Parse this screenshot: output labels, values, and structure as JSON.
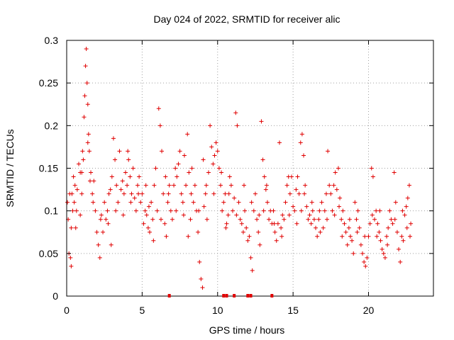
{
  "chart_data": {
    "type": "scatter",
    "title": "Day 024 of 2022, SRMTID for receiver alic",
    "xlabel": "GPS time / hours",
    "ylabel": "SRMTID / TECUs",
    "xlim": [
      0,
      24.3
    ],
    "ylim": [
      0,
      0.3
    ],
    "xticks": [
      0,
      5,
      10,
      15,
      20
    ],
    "yticks": [
      0,
      0.05,
      0.1,
      0.15,
      0.2,
      0.25,
      0.3
    ],
    "grid": true,
    "marker": "plus",
    "color": "#e00000",
    "zero_marks_x": [
      6.8,
      10.4,
      10.6,
      11.1,
      12.0,
      12.2,
      13.6
    ],
    "series": [
      {
        "values": [
          [
            0.05,
            0.11
          ],
          [
            0.1,
            0.09
          ],
          [
            0.15,
            0.05
          ],
          [
            0.2,
            0.12
          ],
          [
            0.25,
            0.045
          ],
          [
            0.3,
            0.035
          ],
          [
            0.35,
            0.12
          ],
          [
            0.4,
            0.1
          ],
          [
            0.45,
            0.14
          ],
          [
            0.5,
            0.11
          ],
          [
            0.55,
            0.13
          ],
          [
            0.6,
            0.08
          ],
          [
            0.7,
            0.125
          ],
          [
            0.8,
            0.155
          ],
          [
            0.9,
            0.145
          ],
          [
            1.0,
            0.12
          ],
          [
            1.05,
            0.17
          ],
          [
            1.1,
            0.16
          ],
          [
            1.15,
            0.21
          ],
          [
            1.2,
            0.235
          ],
          [
            1.25,
            0.27
          ],
          [
            1.3,
            0.29
          ],
          [
            1.35,
            0.25
          ],
          [
            1.4,
            0.225
          ],
          [
            1.45,
            0.19
          ],
          [
            1.5,
            0.17
          ],
          [
            1.55,
            0.135
          ],
          [
            1.6,
            0.145
          ],
          [
            1.7,
            0.12
          ],
          [
            1.8,
            0.135
          ],
          [
            1.9,
            0.1
          ],
          [
            2.0,
            0.075
          ],
          [
            2.1,
            0.06
          ],
          [
            2.2,
            0.045
          ],
          [
            2.3,
            0.095
          ],
          [
            2.4,
            0.075
          ],
          [
            2.5,
            0.11
          ],
          [
            2.6,
            0.09
          ],
          [
            2.7,
            0.1
          ],
          [
            2.8,
            0.12
          ],
          [
            2.9,
            0.125
          ],
          [
            3.0,
            0.14
          ],
          [
            3.1,
            0.185
          ],
          [
            3.2,
            0.16
          ],
          [
            3.3,
            0.13
          ],
          [
            3.4,
            0.11
          ],
          [
            3.5,
            0.17
          ],
          [
            3.6,
            0.125
          ],
          [
            3.7,
            0.135
          ],
          [
            3.8,
            0.12
          ],
          [
            3.9,
            0.145
          ],
          [
            4.0,
            0.13
          ],
          [
            4.1,
            0.16
          ],
          [
            4.2,
            0.14
          ],
          [
            4.3,
            0.12
          ],
          [
            4.4,
            0.15
          ],
          [
            4.5,
            0.115
          ],
          [
            4.6,
            0.1
          ],
          [
            4.7,
            0.13
          ],
          [
            4.8,
            0.14
          ],
          [
            4.9,
            0.11
          ],
          [
            5.0,
            0.12
          ],
          [
            5.1,
            0.085
          ],
          [
            5.2,
            0.1
          ],
          [
            5.3,
            0.095
          ],
          [
            5.4,
            0.08
          ],
          [
            5.5,
            0.075
          ],
          [
            5.6,
            0.11
          ],
          [
            5.7,
            0.09
          ],
          [
            5.8,
            0.13
          ],
          [
            5.9,
            0.15
          ],
          [
            6.0,
            0.1
          ],
          [
            6.1,
            0.22
          ],
          [
            6.2,
            0.2
          ],
          [
            6.3,
            0.17
          ],
          [
            6.4,
            0.12
          ],
          [
            6.5,
            0.085
          ],
          [
            6.6,
            0.07
          ],
          [
            6.7,
            0.11
          ],
          [
            6.8,
            0.13
          ],
          [
            6.9,
            0.1
          ],
          [
            7.0,
            0.09
          ],
          [
            7.1,
            0.13
          ],
          [
            7.2,
            0.15
          ],
          [
            7.3,
            0.14
          ],
          [
            7.4,
            0.155
          ],
          [
            7.5,
            0.17
          ],
          [
            7.6,
            0.12
          ],
          [
            7.7,
            0.11
          ],
          [
            7.8,
            0.165
          ],
          [
            7.9,
            0.13
          ],
          [
            8.0,
            0.19
          ],
          [
            8.1,
            0.145
          ],
          [
            8.2,
            0.09
          ],
          [
            8.3,
            0.15
          ],
          [
            8.4,
            0.11
          ],
          [
            8.5,
            0.13
          ],
          [
            8.6,
            0.1
          ],
          [
            8.7,
            0.075
          ],
          [
            8.8,
            0.04
          ],
          [
            8.9,
            0.02
          ],
          [
            9.0,
            0.01
          ],
          [
            9.1,
            0.105
          ],
          [
            9.2,
            0.12
          ],
          [
            9.3,
            0.09
          ],
          [
            9.4,
            0.145
          ],
          [
            9.5,
            0.2
          ],
          [
            9.6,
            0.175
          ],
          [
            9.7,
            0.155
          ],
          [
            9.8,
            0.165
          ],
          [
            9.9,
            0.18
          ],
          [
            10.0,
            0.17
          ],
          [
            10.1,
            0.15
          ],
          [
            10.2,
            0.13
          ],
          [
            10.3,
            0.1
          ],
          [
            10.4,
            0.11
          ],
          [
            10.5,
            0.12
          ],
          [
            10.6,
            0.085
          ],
          [
            10.7,
            0.095
          ],
          [
            10.8,
            0.14
          ],
          [
            10.9,
            0.13
          ],
          [
            11.0,
            0.1
          ],
          [
            11.1,
            0.115
          ],
          [
            11.2,
            0.215
          ],
          [
            11.3,
            0.2
          ],
          [
            11.4,
            0.11
          ],
          [
            11.5,
            0.09
          ],
          [
            11.6,
            0.085
          ],
          [
            11.7,
            0.075
          ],
          [
            11.8,
            0.1
          ],
          [
            11.9,
            0.08
          ],
          [
            12.0,
            0.065
          ],
          [
            12.1,
            0.07
          ],
          [
            12.2,
            0.045
          ],
          [
            12.3,
            0.03
          ],
          [
            12.4,
            0.1
          ],
          [
            12.5,
            0.12
          ],
          [
            12.6,
            0.09
          ],
          [
            12.7,
            0.075
          ],
          [
            12.8,
            0.06
          ],
          [
            12.9,
            0.205
          ],
          [
            13.0,
            0.16
          ],
          [
            13.1,
            0.14
          ],
          [
            13.2,
            0.125
          ],
          [
            13.3,
            0.11
          ],
          [
            13.4,
            0.09
          ],
          [
            13.5,
            0.1
          ],
          [
            13.6,
            0.085
          ],
          [
            13.7,
            0.1
          ],
          [
            13.8,
            0.075
          ],
          [
            13.9,
            0.065
          ],
          [
            14.0,
            0.085
          ],
          [
            14.1,
            0.18
          ],
          [
            14.2,
            0.08
          ],
          [
            14.3,
            0.095
          ],
          [
            14.4,
            0.09
          ],
          [
            14.5,
            0.11
          ],
          [
            14.6,
            0.13
          ],
          [
            14.7,
            0.14
          ],
          [
            14.8,
            0.12
          ],
          [
            14.9,
            0.14
          ],
          [
            15.0,
            0.105
          ],
          [
            15.1,
            0.1
          ],
          [
            15.2,
            0.125
          ],
          [
            15.3,
            0.14
          ],
          [
            15.4,
            0.12
          ],
          [
            15.5,
            0.18
          ],
          [
            15.6,
            0.19
          ],
          [
            15.7,
            0.165
          ],
          [
            15.8,
            0.13
          ],
          [
            15.9,
            0.105
          ],
          [
            16.0,
            0.09
          ],
          [
            16.1,
            0.095
          ],
          [
            16.2,
            0.085
          ],
          [
            16.3,
            0.1
          ],
          [
            16.4,
            0.09
          ],
          [
            16.5,
            0.08
          ],
          [
            16.6,
            0.07
          ],
          [
            16.7,
            0.09
          ],
          [
            16.8,
            0.075
          ],
          [
            16.9,
            0.11
          ],
          [
            17.0,
            0.08
          ],
          [
            17.1,
            0.1
          ],
          [
            17.2,
            0.12
          ],
          [
            17.3,
            0.17
          ],
          [
            17.4,
            0.13
          ],
          [
            17.5,
            0.12
          ],
          [
            17.6,
            0.1
          ],
          [
            17.7,
            0.13
          ],
          [
            17.8,
            0.145
          ],
          [
            17.9,
            0.125
          ],
          [
            18.0,
            0.15
          ],
          [
            18.1,
            0.115
          ],
          [
            18.2,
            0.09
          ],
          [
            18.3,
            0.1
          ],
          [
            18.4,
            0.085
          ],
          [
            18.5,
            0.075
          ],
          [
            18.6,
            0.06
          ],
          [
            18.7,
            0.08
          ],
          [
            18.8,
            0.07
          ],
          [
            18.9,
            0.065
          ],
          [
            19.0,
            0.05
          ],
          [
            19.1,
            0.11
          ],
          [
            19.2,
            0.09
          ],
          [
            19.3,
            0.1
          ],
          [
            19.4,
            0.08
          ],
          [
            19.5,
            0.06
          ],
          [
            19.6,
            0.05
          ],
          [
            19.7,
            0.04
          ],
          [
            19.8,
            0.035
          ],
          [
            19.9,
            0.045
          ],
          [
            20.0,
            0.07
          ],
          [
            20.1,
            0.085
          ],
          [
            20.2,
            0.15
          ],
          [
            20.3,
            0.14
          ],
          [
            20.4,
            0.09
          ],
          [
            20.5,
            0.1
          ],
          [
            20.6,
            0.085
          ],
          [
            20.7,
            0.075
          ],
          [
            20.8,
            0.065
          ],
          [
            20.9,
            0.055
          ],
          [
            21.0,
            0.05
          ],
          [
            21.1,
            0.045
          ],
          [
            21.2,
            0.07
          ],
          [
            21.3,
            0.08
          ],
          [
            21.4,
            0.1
          ],
          [
            21.5,
            0.09
          ],
          [
            21.6,
            0.085
          ],
          [
            21.7,
            0.145
          ],
          [
            21.8,
            0.11
          ],
          [
            21.9,
            0.075
          ],
          [
            22.0,
            0.055
          ],
          [
            22.1,
            0.04
          ],
          [
            22.2,
            0.07
          ],
          [
            22.3,
            0.065
          ],
          [
            22.4,
            0.095
          ],
          [
            22.5,
            0.105
          ],
          [
            22.6,
            0.115
          ],
          [
            22.7,
            0.13
          ],
          [
            22.8,
            0.085
          ],
          [
            0.3,
            0.08
          ],
          [
            0.65,
            0.1
          ],
          [
            1.0,
            0.145
          ],
          [
            1.4,
            0.18
          ],
          [
            1.75,
            0.11
          ],
          [
            2.25,
            0.09
          ],
          [
            2.75,
            0.085
          ],
          [
            3.25,
            0.1
          ],
          [
            3.75,
            0.095
          ],
          [
            4.25,
            0.11
          ],
          [
            4.75,
            0.12
          ],
          [
            5.25,
            0.13
          ],
          [
            5.75,
            0.065
          ],
          [
            6.25,
            0.09
          ],
          [
            6.75,
            0.12
          ],
          [
            7.25,
            0.1
          ],
          [
            7.75,
            0.095
          ],
          [
            8.25,
            0.12
          ],
          [
            8.75,
            0.1
          ],
          [
            9.25,
            0.13
          ],
          [
            9.75,
            0.12
          ],
          [
            10.25,
            0.145
          ],
          [
            10.75,
            0.12
          ],
          [
            11.25,
            0.095
          ],
          [
            11.75,
            0.13
          ],
          [
            12.25,
            0.11
          ],
          [
            12.75,
            0.095
          ],
          [
            13.25,
            0.13
          ],
          [
            13.75,
            0.085
          ],
          [
            14.25,
            0.07
          ],
          [
            14.75,
            0.095
          ],
          [
            15.25,
            0.085
          ],
          [
            15.75,
            0.12
          ],
          [
            16.25,
            0.11
          ],
          [
            16.75,
            0.1
          ],
          [
            17.25,
            0.09
          ],
          [
            17.75,
            0.095
          ],
          [
            18.25,
            0.07
          ],
          [
            18.75,
            0.09
          ],
          [
            19.25,
            0.075
          ],
          [
            19.75,
            0.07
          ],
          [
            20.25,
            0.095
          ],
          [
            20.75,
            0.1
          ],
          [
            21.25,
            0.06
          ],
          [
            21.75,
            0.09
          ],
          [
            22.25,
            0.1
          ],
          [
            22.75,
            0.07
          ],
          [
            0.9,
            0.095
          ],
          [
            2.95,
            0.06
          ],
          [
            5.45,
            0.105
          ],
          [
            8.05,
            0.07
          ],
          [
            10.55,
            0.08
          ],
          [
            13.05,
            0.1
          ],
          [
            15.55,
            0.1
          ],
          [
            18.05,
            0.105
          ],
          [
            20.55,
            0.07
          ],
          [
            22.55,
            0.08
          ],
          [
            4.05,
            0.17
          ],
          [
            6.55,
            0.14
          ],
          [
            9.05,
            0.16
          ]
        ]
      }
    ]
  }
}
